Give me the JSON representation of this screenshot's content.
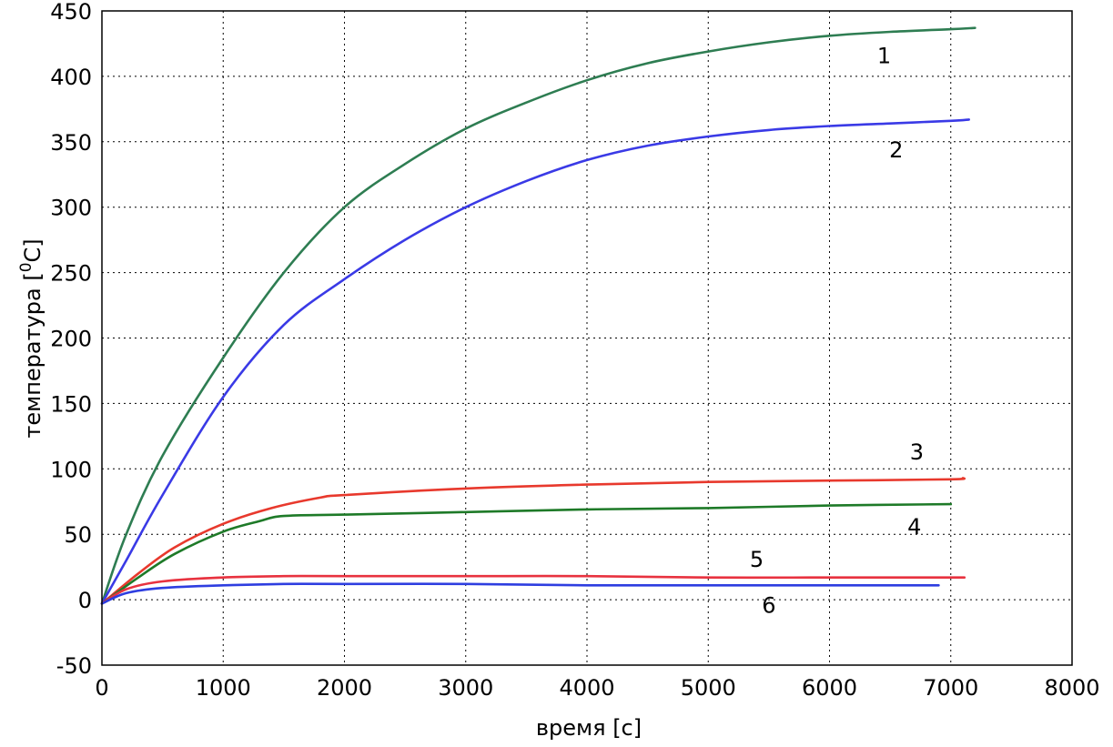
{
  "chart_data": {
    "type": "line",
    "title": "",
    "xlabel": "время [с]",
    "ylabel_main": "температура [",
    "ylabel_sup": "0",
    "ylabel_unit": "C]",
    "xlim": [
      0,
      8000
    ],
    "ylim": [
      -50,
      450
    ],
    "x_ticks": [
      0,
      1000,
      2000,
      3000,
      4000,
      5000,
      6000,
      7000,
      8000
    ],
    "y_ticks": [
      -50,
      0,
      50,
      100,
      150,
      200,
      250,
      300,
      350,
      400,
      450
    ],
    "grid": true,
    "series": [
      {
        "name": "1",
        "color": "#2e7d52",
        "x": [
          0,
          200,
          500,
          1000,
          1500,
          2000,
          2500,
          3000,
          3500,
          4000,
          4500,
          5000,
          5500,
          6000,
          6500,
          7000,
          7200
        ],
        "y": [
          -3,
          50,
          110,
          185,
          250,
          300,
          333,
          360,
          380,
          397,
          410,
          419,
          426,
          431,
          434,
          436,
          437
        ]
      },
      {
        "name": "2",
        "color": "#3a3ae6",
        "x": [
          0,
          200,
          500,
          1000,
          1500,
          2000,
          2500,
          3000,
          3500,
          4000,
          4500,
          5000,
          5500,
          6000,
          6500,
          7000,
          7150
        ],
        "y": [
          -3,
          30,
          80,
          155,
          210,
          245,
          275,
          300,
          320,
          336,
          347,
          354,
          359,
          362,
          364,
          366,
          367
        ]
      },
      {
        "name": "3",
        "color": "#e8392d",
        "x": [
          0,
          300,
          600,
          1000,
          1400,
          1800,
          2000,
          3000,
          4000,
          5000,
          6000,
          7000,
          7100
        ],
        "y": [
          -3,
          20,
          40,
          58,
          70,
          78,
          80,
          85,
          88,
          90,
          91,
          92,
          93
        ]
      },
      {
        "name": "4",
        "color": "#1e7a28",
        "x": [
          0,
          300,
          600,
          1000,
          1300,
          1500,
          2000,
          3000,
          4000,
          5000,
          6000,
          7000
        ],
        "y": [
          -3,
          17,
          35,
          52,
          60,
          64,
          65,
          67,
          69,
          70,
          72,
          73
        ]
      },
      {
        "name": "5",
        "color": "#e8323f",
        "x": [
          0,
          200,
          500,
          1000,
          1500,
          2000,
          3000,
          4000,
          5000,
          6000,
          7000,
          7100
        ],
        "y": [
          -3,
          8,
          14,
          17,
          18,
          18,
          18,
          18,
          17,
          17,
          17,
          17
        ]
      },
      {
        "name": "6",
        "color": "#2e3ee0",
        "x": [
          0,
          200,
          500,
          1000,
          1500,
          2000,
          3000,
          4000,
          5000,
          6000,
          6900
        ],
        "y": [
          -3,
          5,
          9,
          11,
          12,
          12,
          12,
          11,
          11,
          11,
          11
        ]
      }
    ],
    "annotations": [
      {
        "text": "1",
        "x": 6450,
        "y": 410
      },
      {
        "text": "2",
        "x": 6550,
        "y": 338
      },
      {
        "text": "3",
        "x": 6720,
        "y": 107
      },
      {
        "text": "4",
        "x": 6700,
        "y": 50
      },
      {
        "text": "5",
        "x": 5400,
        "y": 25
      },
      {
        "text": "6",
        "x": 5500,
        "y": -10
      }
    ]
  }
}
